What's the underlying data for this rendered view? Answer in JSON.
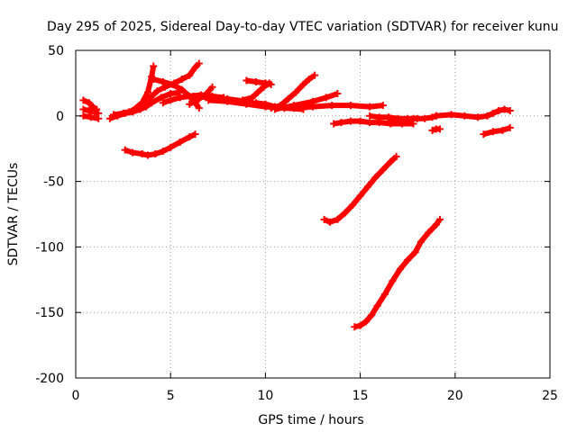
{
  "chart_data": {
    "type": "line",
    "title": "Day 295 of 2025, Sidereal Day-to-day VTEC variation (SDTVAR) for receiver kunu",
    "xlabel": "GPS time / hours",
    "ylabel": "SDTVAR / TECUs",
    "xlim": [
      0,
      25
    ],
    "ylim": [
      -200,
      50
    ],
    "x_ticks": [
      0,
      5,
      10,
      15,
      20,
      25
    ],
    "y_ticks": [
      -200,
      -150,
      -100,
      -50,
      0,
      50
    ],
    "grid": true,
    "color": "#ff0000",
    "series": [
      {
        "name": "s1",
        "points": [
          [
            0.4,
            12
          ],
          [
            0.7,
            10
          ],
          [
            0.9,
            7
          ],
          [
            1.1,
            5
          ]
        ]
      },
      {
        "name": "s2",
        "points": [
          [
            0.4,
            5
          ],
          [
            0.7,
            4
          ],
          [
            1.0,
            3
          ],
          [
            1.2,
            2
          ]
        ]
      },
      {
        "name": "s3",
        "points": [
          [
            0.4,
            0
          ],
          [
            0.8,
            -1
          ],
          [
            1.2,
            -2
          ]
        ]
      },
      {
        "name": "s4",
        "points": [
          [
            1.8,
            -2
          ],
          [
            2.2,
            0
          ],
          [
            2.6,
            2
          ],
          [
            3.0,
            3
          ],
          [
            3.4,
            5
          ],
          [
            3.7,
            7
          ],
          [
            4.0,
            10
          ],
          [
            4.5,
            14
          ],
          [
            5.0,
            17
          ],
          [
            5.5,
            18
          ]
        ]
      },
      {
        "name": "s5",
        "points": [
          [
            2.0,
            1
          ],
          [
            2.5,
            2
          ],
          [
            3.0,
            4
          ],
          [
            3.5,
            10
          ],
          [
            3.8,
            18
          ],
          [
            4.0,
            30
          ],
          [
            4.1,
            38
          ]
        ]
      },
      {
        "name": "s6",
        "points": [
          [
            2.8,
            3
          ],
          [
            3.3,
            6
          ],
          [
            3.8,
            12
          ],
          [
            4.3,
            19
          ],
          [
            4.7,
            22
          ],
          [
            5.2,
            25
          ],
          [
            5.6,
            28
          ],
          [
            6.0,
            31
          ],
          [
            6.3,
            37
          ],
          [
            6.5,
            40
          ]
        ]
      },
      {
        "name": "s7",
        "points": [
          [
            4.1,
            28
          ],
          [
            4.6,
            26
          ],
          [
            5.1,
            24
          ],
          [
            5.6,
            20
          ],
          [
            6.0,
            15
          ],
          [
            6.3,
            10
          ],
          [
            6.5,
            6
          ]
        ]
      },
      {
        "name": "s8",
        "points": [
          [
            4.6,
            10
          ],
          [
            5.0,
            12
          ],
          [
            5.5,
            14
          ],
          [
            6.0,
            15
          ],
          [
            6.6,
            16
          ],
          [
            7.2,
            15
          ],
          [
            7.8,
            14
          ]
        ]
      },
      {
        "name": "s9",
        "points": [
          [
            6.2,
            15
          ],
          [
            7.0,
            14
          ],
          [
            8.0,
            13
          ],
          [
            9.0,
            11
          ],
          [
            10.0,
            8
          ],
          [
            11.0,
            6
          ],
          [
            12.0,
            5
          ]
        ]
      },
      {
        "name": "s10",
        "points": [
          [
            6.0,
            9
          ],
          [
            6.5,
            13
          ],
          [
            6.9,
            17
          ],
          [
            7.2,
            22
          ]
        ]
      },
      {
        "name": "s11",
        "points": [
          [
            7.0,
            12
          ],
          [
            8.0,
            11
          ],
          [
            9.0,
            9
          ],
          [
            10.0,
            7
          ],
          [
            11.0,
            6
          ],
          [
            11.8,
            6
          ]
        ]
      },
      {
        "name": "s12",
        "points": [
          [
            9.0,
            27
          ],
          [
            9.5,
            26
          ],
          [
            10.0,
            25
          ],
          [
            10.3,
            24
          ]
        ]
      },
      {
        "name": "s13",
        "points": [
          [
            8.8,
            12
          ],
          [
            9.3,
            14
          ],
          [
            9.6,
            18
          ],
          [
            9.9,
            22
          ],
          [
            10.2,
            25
          ]
        ]
      },
      {
        "name": "s14",
        "points": [
          [
            9.5,
            10
          ],
          [
            10.0,
            9
          ],
          [
            10.5,
            7
          ],
          [
            11.0,
            6
          ],
          [
            11.5,
            7
          ]
        ]
      },
      {
        "name": "s15",
        "points": [
          [
            10.3,
            6
          ],
          [
            10.8,
            8
          ],
          [
            11.2,
            13
          ],
          [
            11.6,
            18
          ],
          [
            12.0,
            24
          ],
          [
            12.3,
            28
          ],
          [
            12.6,
            31
          ]
        ]
      },
      {
        "name": "s16",
        "points": [
          [
            10.5,
            5
          ],
          [
            11.5,
            8
          ],
          [
            12.5,
            11
          ],
          [
            13.2,
            14
          ],
          [
            13.8,
            17
          ]
        ]
      },
      {
        "name": "s17",
        "points": [
          [
            11.5,
            6
          ],
          [
            12.5,
            7
          ],
          [
            13.5,
            8
          ],
          [
            14.5,
            8
          ],
          [
            15.5,
            7
          ],
          [
            16.2,
            8
          ]
        ]
      },
      {
        "name": "s18",
        "points": [
          [
            13.6,
            -6
          ],
          [
            14.0,
            -5
          ],
          [
            14.5,
            -4
          ],
          [
            15.0,
            -4
          ],
          [
            15.5,
            -5
          ],
          [
            16.0,
            -5
          ],
          [
            16.6,
            -6
          ],
          [
            17.2,
            -6
          ],
          [
            17.8,
            -6
          ]
        ]
      },
      {
        "name": "s19",
        "points": [
          [
            15.5,
            0
          ],
          [
            16.0,
            -1
          ],
          [
            16.5,
            -1
          ],
          [
            17.0,
            -2
          ],
          [
            17.5,
            -2
          ],
          [
            18.0,
            -2
          ]
        ]
      },
      {
        "name": "s20",
        "points": [
          [
            16.6,
            -3
          ],
          [
            17.2,
            -3
          ],
          [
            17.8,
            -2
          ],
          [
            18.4,
            -2
          ],
          [
            18.8,
            -1
          ],
          [
            19.0,
            0
          ]
        ]
      },
      {
        "name": "s21",
        "points": [
          [
            18.8,
            -11
          ],
          [
            19.0,
            -10
          ],
          [
            19.2,
            -10
          ]
        ]
      },
      {
        "name": "s22",
        "points": [
          [
            19.0,
            0
          ],
          [
            19.8,
            1
          ],
          [
            20.5,
            0
          ],
          [
            21.2,
            -1
          ],
          [
            21.7,
            0
          ],
          [
            22.0,
            2
          ],
          [
            22.3,
            4
          ],
          [
            22.6,
            5
          ],
          [
            22.9,
            4
          ]
        ]
      },
      {
        "name": "s23",
        "points": [
          [
            21.5,
            -14
          ],
          [
            22.0,
            -12
          ],
          [
            22.5,
            -11
          ],
          [
            22.9,
            -9
          ]
        ]
      },
      {
        "name": "s24",
        "points": [
          [
            2.6,
            -26
          ],
          [
            3.0,
            -28
          ],
          [
            3.5,
            -29
          ],
          [
            3.8,
            -30
          ],
          [
            4.2,
            -29
          ],
          [
            4.6,
            -27
          ],
          [
            5.0,
            -24
          ],
          [
            5.5,
            -20
          ],
          [
            6.0,
            -16
          ],
          [
            6.3,
            -14
          ]
        ]
      },
      {
        "name": "s25",
        "points": [
          [
            13.1,
            -79
          ],
          [
            13.4,
            -81
          ],
          [
            13.8,
            -79
          ],
          [
            14.2,
            -74
          ],
          [
            14.6,
            -68
          ],
          [
            15.0,
            -61
          ],
          [
            15.4,
            -54
          ],
          [
            15.8,
            -47
          ],
          [
            16.2,
            -41
          ],
          [
            16.6,
            -35
          ],
          [
            16.9,
            -31
          ]
        ]
      },
      {
        "name": "s26",
        "points": [
          [
            14.7,
            -161
          ],
          [
            15.0,
            -160
          ],
          [
            15.3,
            -157
          ],
          [
            15.6,
            -152
          ],
          [
            15.9,
            -145
          ],
          [
            16.3,
            -136
          ],
          [
            16.7,
            -126
          ],
          [
            17.1,
            -117
          ],
          [
            17.5,
            -110
          ],
          [
            17.9,
            -104
          ],
          [
            18.2,
            -96
          ],
          [
            18.6,
            -89
          ],
          [
            19.0,
            -83
          ],
          [
            19.2,
            -79
          ]
        ]
      }
    ]
  }
}
